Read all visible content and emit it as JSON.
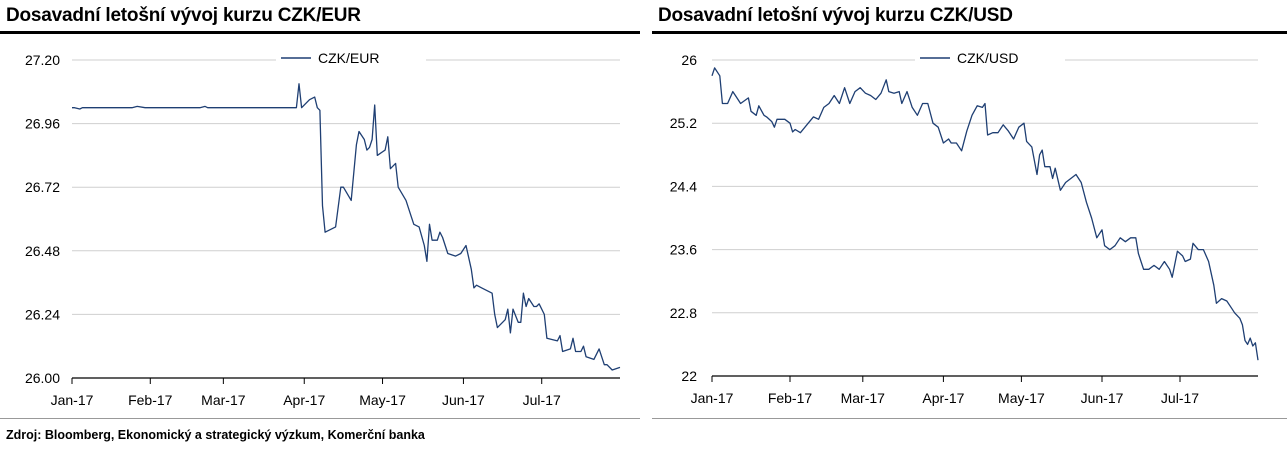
{
  "source": "Zdroj: Bloomberg, Ekonomický a strategický výzkum, Komerční banka",
  "chart_data": [
    {
      "type": "line",
      "title": "Dosavadní letošní vývoj kurzu CZK/EUR",
      "xlabel": "",
      "ylabel": "",
      "categories": [
        "Jan-17",
        "Feb-17",
        "Mar-17",
        "Apr-17",
        "May-17",
        "Jun-17",
        "Jul-17"
      ],
      "x_range": [
        "2017-01-02",
        "2017-07-31"
      ],
      "ylim": [
        26.0,
        27.2
      ],
      "y_ticks": [
        "27.20",
        "26.96",
        "26.72",
        "26.48",
        "26.24",
        "26.00"
      ],
      "grid": "horizontal",
      "legend": "top-center",
      "line_color": "#1f3f73",
      "series": [
        {
          "name": "CZK/EUR",
          "points": [
            [
              "2017-01-02",
              27.02
            ],
            [
              "2017-01-03",
              27.02
            ],
            [
              "2017-01-05",
              27.015
            ],
            [
              "2017-01-06",
              27.02
            ],
            [
              "2017-01-10",
              27.02
            ],
            [
              "2017-01-20",
              27.02
            ],
            [
              "2017-01-25",
              27.02
            ],
            [
              "2017-01-27",
              27.025
            ],
            [
              "2017-01-30",
              27.02
            ],
            [
              "2017-02-10",
              27.02
            ],
            [
              "2017-02-20",
              27.02
            ],
            [
              "2017-02-22",
              27.025
            ],
            [
              "2017-02-23",
              27.02
            ],
            [
              "2017-03-10",
              27.02
            ],
            [
              "2017-03-20",
              27.02
            ],
            [
              "2017-03-29",
              27.02
            ],
            [
              "2017-03-30",
              27.11
            ],
            [
              "2017-03-31",
              27.02
            ],
            [
              "2017-04-03",
              27.05
            ],
            [
              "2017-04-05",
              27.06
            ],
            [
              "2017-04-06",
              27.02
            ],
            [
              "2017-04-07",
              27.01
            ],
            [
              "2017-04-08",
              26.65
            ],
            [
              "2017-04-09",
              26.55
            ],
            [
              "2017-04-13",
              26.57
            ],
            [
              "2017-04-15",
              26.72
            ],
            [
              "2017-04-16",
              26.72
            ],
            [
              "2017-04-19",
              26.67
            ],
            [
              "2017-04-21",
              26.88
            ],
            [
              "2017-04-22",
              26.93
            ],
            [
              "2017-04-24",
              26.9
            ],
            [
              "2017-04-25",
              26.86
            ],
            [
              "2017-04-26",
              26.87
            ],
            [
              "2017-04-27",
              26.9
            ],
            [
              "2017-04-28",
              27.03
            ],
            [
              "2017-04-29",
              26.84
            ],
            [
              "2017-05-02",
              26.86
            ],
            [
              "2017-05-03",
              26.91
            ],
            [
              "2017-05-04",
              26.79
            ],
            [
              "2017-05-06",
              26.81
            ],
            [
              "2017-05-07",
              26.72
            ],
            [
              "2017-05-10",
              26.67
            ],
            [
              "2017-05-12",
              26.61
            ],
            [
              "2017-05-13",
              26.58
            ],
            [
              "2017-05-15",
              26.57
            ],
            [
              "2017-05-17",
              26.5
            ],
            [
              "2017-05-18",
              26.44
            ],
            [
              "2017-05-19",
              26.58
            ],
            [
              "2017-05-20",
              26.52
            ],
            [
              "2017-05-22",
              26.52
            ],
            [
              "2017-05-23",
              26.55
            ],
            [
              "2017-05-24",
              26.53
            ],
            [
              "2017-05-26",
              26.47
            ],
            [
              "2017-05-29",
              26.46
            ],
            [
              "2017-05-31",
              26.47
            ],
            [
              "2017-06-02",
              26.5
            ],
            [
              "2017-06-04",
              26.41
            ],
            [
              "2017-06-05",
              26.34
            ],
            [
              "2017-06-06",
              26.35
            ],
            [
              "2017-06-08",
              26.34
            ],
            [
              "2017-06-12",
              26.32
            ],
            [
              "2017-06-13",
              26.24
            ],
            [
              "2017-06-14",
              26.19
            ],
            [
              "2017-06-16",
              26.21
            ],
            [
              "2017-06-17",
              26.22
            ],
            [
              "2017-06-18",
              26.26
            ],
            [
              "2017-06-19",
              26.17
            ],
            [
              "2017-06-20",
              26.26
            ],
            [
              "2017-06-22",
              26.21
            ],
            [
              "2017-06-23",
              26.21
            ],
            [
              "2017-06-24",
              26.32
            ],
            [
              "2017-06-25",
              26.27
            ],
            [
              "2017-06-26",
              26.3
            ],
            [
              "2017-06-28",
              26.27
            ],
            [
              "2017-06-29",
              26.27
            ],
            [
              "2017-06-30",
              26.28
            ],
            [
              "2017-07-02",
              26.24
            ],
            [
              "2017-07-03",
              26.15
            ],
            [
              "2017-07-07",
              26.14
            ],
            [
              "2017-07-08",
              26.16
            ],
            [
              "2017-07-09",
              26.1
            ],
            [
              "2017-07-12",
              26.11
            ],
            [
              "2017-07-13",
              26.15
            ],
            [
              "2017-07-14",
              26.1
            ],
            [
              "2017-07-16",
              26.1
            ],
            [
              "2017-07-17",
              26.12
            ],
            [
              "2017-07-18",
              26.08
            ],
            [
              "2017-07-21",
              26.07
            ],
            [
              "2017-07-23",
              26.11
            ],
            [
              "2017-07-25",
              26.05
            ],
            [
              "2017-07-26",
              26.05
            ],
            [
              "2017-07-28",
              26.03
            ],
            [
              "2017-07-31",
              26.04
            ]
          ]
        }
      ]
    },
    {
      "type": "line",
      "title": "Dosavadní letošní vývoj kurzu CZK/USD",
      "xlabel": "",
      "ylabel": "",
      "categories": [
        "Jan-17",
        "Feb-17",
        "Mar-17",
        "Apr-17",
        "May-17",
        "Jun-17",
        "Jul-17"
      ],
      "x_range": [
        "2017-01-02",
        "2017-07-31"
      ],
      "ylim": [
        22,
        26
      ],
      "y_ticks": [
        "26",
        "25.2",
        "24.4",
        "23.6",
        "22.8",
        "22"
      ],
      "grid": "horizontal",
      "legend": "top-center",
      "line_color": "#1f3f73",
      "series": [
        {
          "name": "CZK/USD",
          "points": [
            [
              "2017-01-02",
              25.8
            ],
            [
              "2017-01-03",
              25.9
            ],
            [
              "2017-01-05",
              25.8
            ],
            [
              "2017-01-06",
              25.45
            ],
            [
              "2017-01-08",
              25.45
            ],
            [
              "2017-01-10",
              25.6
            ],
            [
              "2017-01-11",
              25.55
            ],
            [
              "2017-01-13",
              25.45
            ],
            [
              "2017-01-16",
              25.52
            ],
            [
              "2017-01-17",
              25.35
            ],
            [
              "2017-01-19",
              25.3
            ],
            [
              "2017-01-20",
              25.42
            ],
            [
              "2017-01-22",
              25.3
            ],
            [
              "2017-01-23",
              25.28
            ],
            [
              "2017-01-25",
              25.22
            ],
            [
              "2017-01-26",
              25.15
            ],
            [
              "2017-01-27",
              25.25
            ],
            [
              "2017-01-30",
              25.25
            ],
            [
              "2017-02-01",
              25.2
            ],
            [
              "2017-02-02",
              25.09
            ],
            [
              "2017-02-03",
              25.12
            ],
            [
              "2017-02-05",
              25.08
            ],
            [
              "2017-02-08",
              25.2
            ],
            [
              "2017-02-10",
              25.28
            ],
            [
              "2017-02-12",
              25.25
            ],
            [
              "2017-02-14",
              25.4
            ],
            [
              "2017-02-16",
              25.45
            ],
            [
              "2017-02-18",
              25.55
            ],
            [
              "2017-02-20",
              25.45
            ],
            [
              "2017-02-22",
              25.65
            ],
            [
              "2017-02-24",
              25.45
            ],
            [
              "2017-02-26",
              25.6
            ],
            [
              "2017-02-28",
              25.65
            ],
            [
              "2017-03-02",
              25.58
            ],
            [
              "2017-03-04",
              25.55
            ],
            [
              "2017-03-06",
              25.5
            ],
            [
              "2017-03-08",
              25.58
            ],
            [
              "2017-03-10",
              25.75
            ],
            [
              "2017-03-11",
              25.6
            ],
            [
              "2017-03-13",
              25.58
            ],
            [
              "2017-03-15",
              25.6
            ],
            [
              "2017-03-16",
              25.45
            ],
            [
              "2017-03-18",
              25.6
            ],
            [
              "2017-03-20",
              25.4
            ],
            [
              "2017-03-22",
              25.3
            ],
            [
              "2017-03-24",
              25.45
            ],
            [
              "2017-03-26",
              25.45
            ],
            [
              "2017-03-28",
              25.2
            ],
            [
              "2017-03-30",
              25.15
            ],
            [
              "2017-04-01",
              24.95
            ],
            [
              "2017-04-03",
              25.0
            ],
            [
              "2017-04-04",
              24.95
            ],
            [
              "2017-04-06",
              24.95
            ],
            [
              "2017-04-08",
              24.85
            ],
            [
              "2017-04-10",
              25.1
            ],
            [
              "2017-04-12",
              25.3
            ],
            [
              "2017-04-14",
              25.42
            ],
            [
              "2017-04-16",
              25.4
            ],
            [
              "2017-04-17",
              25.45
            ],
            [
              "2017-04-18",
              25.05
            ],
            [
              "2017-04-20",
              25.08
            ],
            [
              "2017-04-22",
              25.08
            ],
            [
              "2017-04-24",
              25.18
            ],
            [
              "2017-04-26",
              25.1
            ],
            [
              "2017-04-28",
              25.0
            ],
            [
              "2017-04-30",
              25.15
            ],
            [
              "2017-05-02",
              25.2
            ],
            [
              "2017-05-03",
              24.97
            ],
            [
              "2017-05-05",
              24.9
            ],
            [
              "2017-05-07",
              24.55
            ],
            [
              "2017-05-08",
              24.8
            ],
            [
              "2017-05-09",
              24.86
            ],
            [
              "2017-05-10",
              24.65
            ],
            [
              "2017-05-12",
              24.65
            ],
            [
              "2017-05-13",
              24.5
            ],
            [
              "2017-05-14",
              24.63
            ],
            [
              "2017-05-16",
              24.35
            ],
            [
              "2017-05-18",
              24.45
            ],
            [
              "2017-05-20",
              24.5
            ],
            [
              "2017-05-22",
              24.55
            ],
            [
              "2017-05-24",
              24.45
            ],
            [
              "2017-05-26",
              24.2
            ],
            [
              "2017-05-28",
              24.0
            ],
            [
              "2017-05-30",
              23.75
            ],
            [
              "2017-06-01",
              23.85
            ],
            [
              "2017-06-02",
              23.65
            ],
            [
              "2017-06-04",
              23.6
            ],
            [
              "2017-06-06",
              23.65
            ],
            [
              "2017-06-08",
              23.75
            ],
            [
              "2017-06-10",
              23.7
            ],
            [
              "2017-06-12",
              23.75
            ],
            [
              "2017-06-14",
              23.75
            ],
            [
              "2017-06-15",
              23.55
            ],
            [
              "2017-06-16",
              23.45
            ],
            [
              "2017-06-17",
              23.35
            ],
            [
              "2017-06-19",
              23.35
            ],
            [
              "2017-06-21",
              23.4
            ],
            [
              "2017-06-23",
              23.35
            ],
            [
              "2017-06-25",
              23.45
            ],
            [
              "2017-06-27",
              23.35
            ],
            [
              "2017-06-28",
              23.25
            ],
            [
              "2017-06-30",
              23.58
            ],
            [
              "2017-07-02",
              23.52
            ],
            [
              "2017-07-03",
              23.45
            ],
            [
              "2017-07-05",
              23.48
            ],
            [
              "2017-07-06",
              23.68
            ],
            [
              "2017-07-08",
              23.6
            ],
            [
              "2017-07-10",
              23.6
            ],
            [
              "2017-07-12",
              23.45
            ],
            [
              "2017-07-14",
              23.15
            ],
            [
              "2017-07-15",
              22.92
            ],
            [
              "2017-07-17",
              22.98
            ],
            [
              "2017-07-19",
              22.95
            ],
            [
              "2017-07-21",
              22.85
            ],
            [
              "2017-07-22",
              22.8
            ],
            [
              "2017-07-24",
              22.73
            ],
            [
              "2017-07-25",
              22.65
            ],
            [
              "2017-07-26",
              22.45
            ],
            [
              "2017-07-27",
              22.4
            ],
            [
              "2017-07-28",
              22.48
            ],
            [
              "2017-07-29",
              22.38
            ],
            [
              "2017-07-30",
              22.42
            ],
            [
              "2017-07-31",
              22.2
            ]
          ]
        }
      ]
    }
  ]
}
